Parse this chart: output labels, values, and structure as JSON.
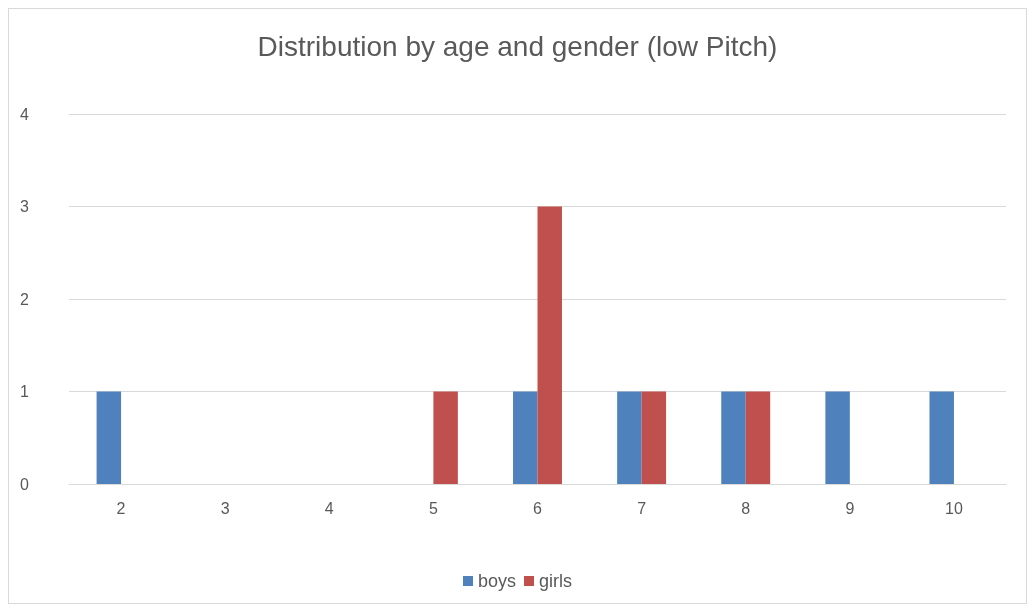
{
  "chart_data": {
    "type": "bar",
    "title": "Distribution by age and gender (low Pitch)",
    "categories": [
      "2",
      "3",
      "4",
      "5",
      "6",
      "7",
      "8",
      "9",
      "10"
    ],
    "series": [
      {
        "name": "boys",
        "color": "#4f81bd",
        "values": [
          1,
          0,
          0,
          0,
          1,
          1,
          1,
          1,
          1
        ]
      },
      {
        "name": "girls",
        "color": "#c0504d",
        "values": [
          0,
          0,
          0,
          1,
          3,
          1,
          1,
          0,
          0
        ]
      }
    ],
    "ylim": [
      0,
      4
    ],
    "yticks": [
      0,
      1,
      2,
      3,
      4
    ],
    "grid": "y",
    "legend": "bottom"
  }
}
